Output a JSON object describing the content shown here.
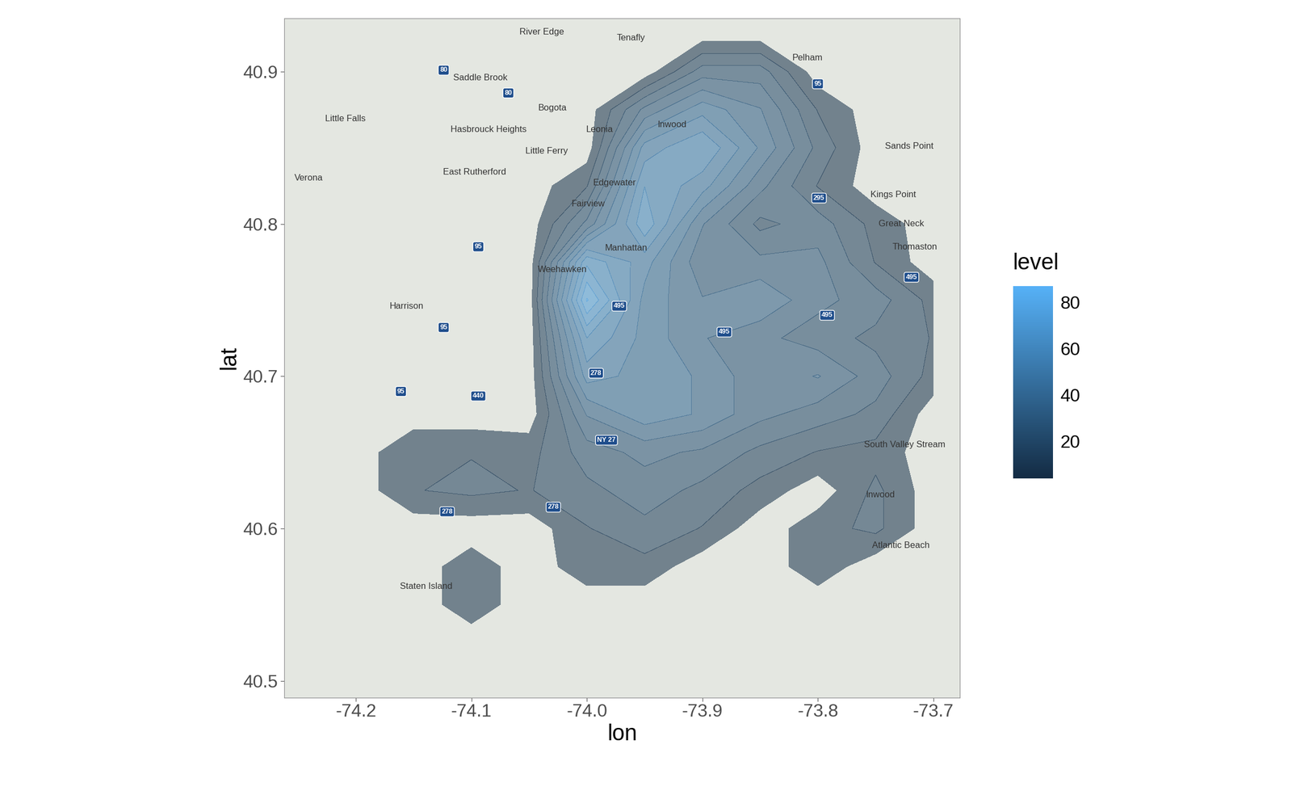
{
  "chart_data": {
    "type": "density_map",
    "x_label": "lon",
    "y_label": "lat",
    "xlim": [
      -74.262,
      -73.677
    ],
    "ylim": [
      40.489,
      40.935
    ],
    "xticks": [
      -74.2,
      -74.1,
      -74.0,
      -73.9,
      -73.8,
      -73.7
    ],
    "yticks": [
      40.5,
      40.6,
      40.7,
      40.8,
      40.9
    ],
    "density": {
      "lon": [
        -74.25,
        -74.2,
        -74.15,
        -74.1,
        -74.05,
        -74.0,
        -73.95,
        -73.9,
        -73.85,
        -73.8,
        -73.75,
        -73.7
      ],
      "lat": [
        40.5,
        40.525,
        40.55,
        40.575,
        40.6,
        40.625,
        40.65,
        40.675,
        40.7,
        40.725,
        40.75,
        40.775,
        40.8,
        40.825,
        40.85,
        40.875,
        40.9,
        40.925
      ],
      "levels": [
        [
          0,
          0,
          0,
          0,
          0,
          0,
          0,
          0,
          0,
          0,
          0,
          0
        ],
        [
          0,
          0,
          0,
          0,
          0,
          0,
          0,
          0,
          0,
          0,
          0,
          0
        ],
        [
          0,
          0,
          0,
          8,
          0,
          0,
          0,
          0,
          0,
          0,
          0,
          0
        ],
        [
          0,
          0,
          0,
          8,
          0,
          8,
          8,
          0,
          0,
          8,
          0,
          0
        ],
        [
          0,
          0,
          0,
          0,
          0,
          10,
          15,
          10,
          0,
          8,
          12,
          0
        ],
        [
          0,
          0,
          10,
          12,
          10,
          15,
          20,
          15,
          8,
          0,
          12,
          0
        ],
        [
          0,
          0,
          10,
          10,
          8,
          20,
          25,
          22,
          15,
          10,
          8,
          0
        ],
        [
          0,
          0,
          0,
          0,
          0,
          30,
          40,
          35,
          25,
          20,
          15,
          0
        ],
        [
          0,
          0,
          0,
          0,
          0,
          45,
          40,
          35,
          25,
          30,
          20,
          8
        ],
        [
          0,
          0,
          0,
          0,
          0,
          55,
          40,
          30,
          25,
          20,
          15,
          10
        ],
        [
          0,
          0,
          0,
          0,
          0,
          75,
          40,
          30,
          35,
          25,
          20,
          8
        ],
        [
          0,
          0,
          0,
          0,
          0,
          60,
          45,
          25,
          25,
          25,
          10,
          0
        ],
        [
          0,
          0,
          0,
          0,
          0,
          25,
          60,
          30,
          15,
          20,
          8,
          0
        ],
        [
          0,
          0,
          0,
          0,
          0,
          10,
          55,
          45,
          25,
          10,
          0,
          0
        ],
        [
          0,
          0,
          0,
          0,
          0,
          0,
          45,
          55,
          35,
          15,
          0,
          0
        ],
        [
          0,
          0,
          0,
          0,
          0,
          0,
          25,
          40,
          30,
          10,
          0,
          0
        ],
        [
          0,
          0,
          0,
          0,
          0,
          0,
          0,
          20,
          20,
          0,
          0,
          0
        ],
        [
          0,
          0,
          0,
          0,
          0,
          0,
          0,
          0,
          0,
          0,
          0,
          0
        ]
      ]
    },
    "colorbar": {
      "title": "level",
      "range": [
        4,
        87
      ],
      "ticks": [
        20,
        40,
        60,
        80
      ]
    },
    "map_labels": [
      {
        "text": "River Edge",
        "lon": -74.039,
        "lat": 40.926
      },
      {
        "text": "Tenafly",
        "lon": -73.962,
        "lat": 40.922
      },
      {
        "text": "Saddle Brook",
        "lon": -74.092,
        "lat": 40.896
      },
      {
        "text": "Little Falls",
        "lon": -74.209,
        "lat": 40.869
      },
      {
        "text": "Bogota",
        "lon": -74.03,
        "lat": 40.876
      },
      {
        "text": "Hasbrouck Heights",
        "lon": -74.085,
        "lat": 40.862
      },
      {
        "text": "Little Ferry",
        "lon": -74.035,
        "lat": 40.848
      },
      {
        "text": "Leonia",
        "lon": -73.989,
        "lat": 40.862
      },
      {
        "text": "Inwood",
        "lon": -73.926,
        "lat": 40.865
      },
      {
        "text": "Pelham",
        "lon": -73.809,
        "lat": 40.909
      },
      {
        "text": "Sands Point",
        "lon": -73.721,
        "lat": 40.851
      },
      {
        "text": "Kings Point",
        "lon": -73.735,
        "lat": 40.819
      },
      {
        "text": "Great Neck",
        "lon": -73.728,
        "lat": 40.8
      },
      {
        "text": "Thomaston",
        "lon": -73.716,
        "lat": 40.785
      },
      {
        "text": "Verona",
        "lon": -74.241,
        "lat": 40.83
      },
      {
        "text": "East Rutherford",
        "lon": -74.097,
        "lat": 40.834
      },
      {
        "text": "Edgewater",
        "lon": -73.976,
        "lat": 40.827
      },
      {
        "text": "Fairview",
        "lon": -73.999,
        "lat": 40.813
      },
      {
        "text": "Manhattan",
        "lon": -73.966,
        "lat": 40.784
      },
      {
        "text": "Weehawken",
        "lon": -74.021,
        "lat": 40.77
      },
      {
        "text": "Harrison",
        "lon": -74.156,
        "lat": 40.746
      },
      {
        "text": "South Valley Stream",
        "lon": -73.725,
        "lat": 40.655
      },
      {
        "text": "Inwood",
        "lon": -73.746,
        "lat": 40.622
      },
      {
        "text": "Atlantic Beach",
        "lon": -73.728,
        "lat": 40.589
      },
      {
        "text": "Staten Island",
        "lon": -74.139,
        "lat": 40.562
      }
    ],
    "road_signs": [
      {
        "text": "80",
        "lon": -74.124,
        "lat": 40.901
      },
      {
        "text": "80",
        "lon": -74.068,
        "lat": 40.886
      },
      {
        "text": "95",
        "lon": -73.8,
        "lat": 40.892
      },
      {
        "text": "95",
        "lon": -74.094,
        "lat": 40.785
      },
      {
        "text": "95",
        "lon": -74.124,
        "lat": 40.732
      },
      {
        "text": "95",
        "lon": -74.161,
        "lat": 40.69
      },
      {
        "text": "295",
        "lon": -73.799,
        "lat": 40.817
      },
      {
        "text": "495",
        "lon": -73.972,
        "lat": 40.746
      },
      {
        "text": "495",
        "lon": -73.881,
        "lat": 40.729
      },
      {
        "text": "495",
        "lon": -73.792,
        "lat": 40.74
      },
      {
        "text": "495",
        "lon": -73.719,
        "lat": 40.765
      },
      {
        "text": "278",
        "lon": -73.992,
        "lat": 40.702
      },
      {
        "text": "278",
        "lon": -74.121,
        "lat": 40.611
      },
      {
        "text": "278",
        "lon": -74.029,
        "lat": 40.614
      },
      {
        "text": "440",
        "lon": -74.094,
        "lat": 40.687
      },
      {
        "text": "NY 27",
        "lon": -73.983,
        "lat": 40.658
      }
    ]
  }
}
